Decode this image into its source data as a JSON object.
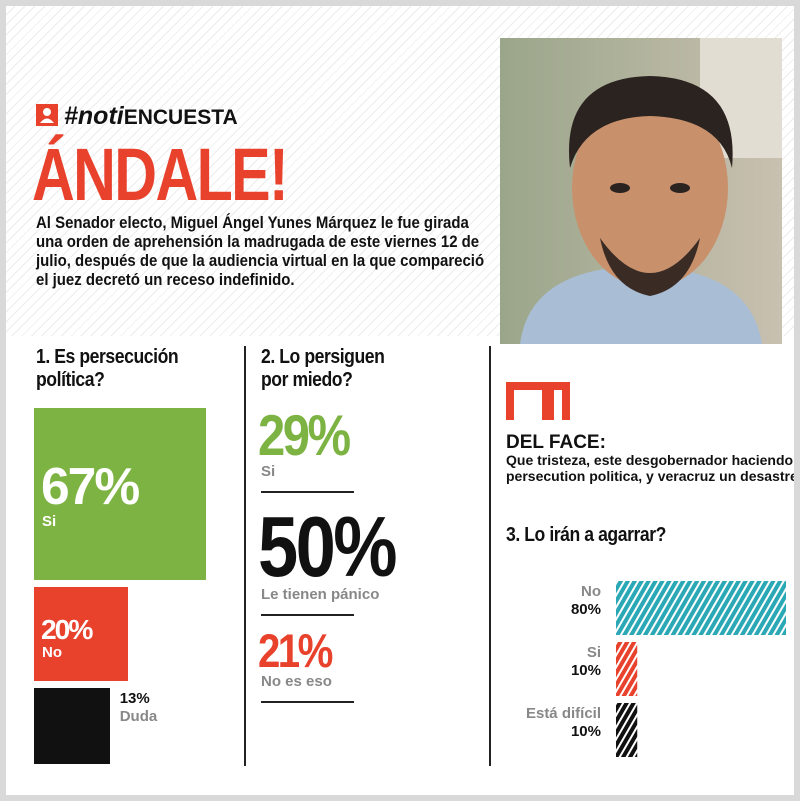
{
  "header": {
    "hashtag_prefix": "#noti",
    "hashtag_suffix": "ENCUESTA",
    "title": "ÁNDALE!",
    "body": "Al Senador electo, Miguel Ángel Yunes Márquez le fue girada una orden de aprehensión la madrugada de este viernes 12 de julio, después de que la audiencia virtual en la que compareció el juez decretó un receso indefinido."
  },
  "questions": [
    {
      "title": "1. Es persecución política?",
      "answers": [
        {
          "label": "Si",
          "value": 67,
          "value_label": "67%",
          "color": "#7cb342"
        },
        {
          "label": "No",
          "value": 20,
          "value_label": "20%",
          "color": "#e8412c"
        },
        {
          "label": "Duda",
          "value": 13,
          "value_label": "13%",
          "color": "#111111"
        }
      ]
    },
    {
      "title": "2. Lo persiguen por miedo?",
      "answers": [
        {
          "label": "Si",
          "value": 29,
          "value_label": "29%",
          "color": "#7cb342"
        },
        {
          "label": "Le tienen pánico",
          "value": 50,
          "value_label": "50%",
          "color": "#111111"
        },
        {
          "label": "No es eso",
          "value": 21,
          "value_label": "21%",
          "color": "#e8412c"
        }
      ]
    },
    {
      "title": "3. Lo irán a agarrar?",
      "answers": [
        {
          "label": "No",
          "value": 80,
          "value_label": "80%",
          "color": "#2aa8b5"
        },
        {
          "label": "Si",
          "value": 10,
          "value_label": "10%",
          "color": "#e8412c"
        },
        {
          "label": "Está difícil",
          "value": 10,
          "value_label": "10%",
          "color": "#111111"
        }
      ]
    }
  ],
  "quote": {
    "heading": "DEL FACE:",
    "text": "Que tristeza, este desgobernador haciendo persecution politica, y veracruz un desastre."
  }
}
